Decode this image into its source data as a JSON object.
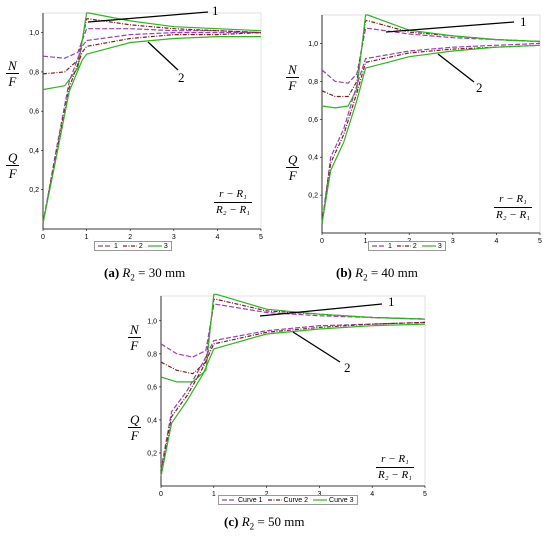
{
  "panels": [
    {
      "id": "a",
      "caption_letter": "(a)",
      "caption_var": "R",
      "caption_sub": "2",
      "caption_rest": " = 30 mm",
      "x_ticks": [
        "0",
        "1",
        "2",
        "3",
        "4",
        "5"
      ],
      "y_ticks": [
        "0,2",
        "0,4",
        "0,6",
        "0,8",
        "1,0"
      ],
      "label_top_num": "N",
      "label_top_den": "F",
      "label_bottom_num": "Q",
      "label_bottom_den": "F",
      "x_label_num": "r − R₁",
      "x_label_den": "R₂ − R₁",
      "callout_1": "1",
      "callout_2": "2",
      "legend": [
        "1",
        "2",
        "3"
      ]
    },
    {
      "id": "b",
      "caption_letter": "(b)",
      "caption_var": "R",
      "caption_sub": "2",
      "caption_rest": " = 40 mm",
      "x_ticks": [
        "0",
        "1",
        "2",
        "3",
        "4",
        "5"
      ],
      "y_ticks": [
        "0,2",
        "0,4",
        "0,6",
        "0,8",
        "1,0"
      ],
      "label_top_num": "N",
      "label_top_den": "F",
      "label_bottom_num": "Q",
      "label_bottom_den": "F",
      "x_label_num": "r − R₁",
      "x_label_den": "R₂ − R₁",
      "callout_1": "1",
      "callout_2": "2",
      "legend": [
        "1",
        "2",
        "3"
      ]
    },
    {
      "id": "c",
      "caption_letter": "(c)",
      "caption_var": "R",
      "caption_sub": "2",
      "caption_rest": " = 50 mm",
      "x_ticks": [
        "0",
        "1",
        "2",
        "3",
        "4",
        "5"
      ],
      "y_ticks": [
        "0,2",
        "0,4",
        "0,6",
        "0,8",
        "1,0"
      ],
      "label_top_num": "N",
      "label_top_den": "F",
      "label_bottom_num": "Q",
      "label_bottom_den": "F",
      "x_label_num": "r − R₁",
      "x_label_den": "R₂ − R₁",
      "callout_1": "1",
      "callout_2": "2",
      "legend": [
        "Curve 1",
        "Curve 2",
        "Curve 3"
      ]
    }
  ],
  "colors": {
    "curve1": "#9b3fb5",
    "curve2": "#7a1f1f",
    "curve3": "#2fb51e"
  },
  "chart_data": [
    {
      "type": "line",
      "xlim": [
        0,
        5
      ],
      "ylim": [
        0,
        1.1
      ],
      "series": [
        {
          "name": "1",
          "group": "N/F",
          "x": [
            0,
            0.5,
            0.8,
            1.0,
            1.05,
            2,
            3,
            4,
            5
          ],
          "y": [
            0.88,
            0.87,
            0.9,
            1.02,
            1.02,
            1.02,
            1.01,
            1.01,
            1.0
          ]
        },
        {
          "name": "2",
          "group": "N/F",
          "x": [
            0,
            0.5,
            0.8,
            1.0,
            1.05,
            2,
            3,
            4,
            5
          ],
          "y": [
            0.79,
            0.8,
            0.86,
            1.07,
            1.07,
            1.04,
            1.02,
            1.01,
            1.0
          ]
        },
        {
          "name": "3",
          "group": "N/F",
          "x": [
            0,
            0.5,
            0.8,
            1.0,
            1.05,
            2,
            3,
            4,
            5
          ],
          "y": [
            0.71,
            0.73,
            0.82,
            1.1,
            1.1,
            1.06,
            1.03,
            1.02,
            1.01
          ]
        },
        {
          "name": "1",
          "group": "Q/F",
          "x": [
            0,
            0.3,
            0.6,
            0.9,
            1.0,
            2,
            3,
            4,
            5
          ],
          "y": [
            0.03,
            0.4,
            0.75,
            0.93,
            0.96,
            0.99,
            1.0,
            1.0,
            1.0
          ]
        },
        {
          "name": "2",
          "group": "Q/F",
          "x": [
            0,
            0.3,
            0.6,
            0.9,
            1.0,
            2,
            3,
            4,
            5
          ],
          "y": [
            0.03,
            0.38,
            0.72,
            0.9,
            0.93,
            0.97,
            0.99,
            0.99,
            1.0
          ]
        },
        {
          "name": "3",
          "group": "Q/F",
          "x": [
            0,
            0.3,
            0.6,
            0.9,
            1.0,
            2,
            3,
            4,
            5
          ],
          "y": [
            0.03,
            0.36,
            0.7,
            0.86,
            0.89,
            0.95,
            0.97,
            0.98,
            0.98
          ]
        }
      ]
    },
    {
      "type": "line",
      "xlim": [
        0,
        5
      ],
      "ylim": [
        0,
        1.15
      ],
      "series": [
        {
          "name": "1",
          "group": "N/F",
          "x": [
            0,
            0.3,
            0.6,
            0.8,
            1.0,
            1.05,
            2,
            3,
            4,
            5
          ],
          "y": [
            0.86,
            0.8,
            0.79,
            0.84,
            1.08,
            1.08,
            1.05,
            1.03,
            1.02,
            1.01
          ]
        },
        {
          "name": "2",
          "group": "N/F",
          "x": [
            0,
            0.3,
            0.6,
            0.8,
            1.0,
            1.05,
            2,
            3,
            4,
            5
          ],
          "y": [
            0.75,
            0.72,
            0.72,
            0.8,
            1.12,
            1.12,
            1.06,
            1.04,
            1.02,
            1.01
          ]
        },
        {
          "name": "3",
          "group": "N/F",
          "x": [
            0,
            0.3,
            0.6,
            0.8,
            1.0,
            1.05,
            2,
            3,
            4,
            5
          ],
          "y": [
            0.67,
            0.66,
            0.67,
            0.76,
            1.15,
            1.15,
            1.07,
            1.04,
            1.02,
            1.01
          ]
        },
        {
          "name": "1",
          "group": "Q/F",
          "x": [
            0,
            0.2,
            0.5,
            0.8,
            1.0,
            2,
            3,
            4,
            5
          ],
          "y": [
            0.05,
            0.4,
            0.55,
            0.78,
            0.92,
            0.96,
            0.98,
            0.99,
            1.0
          ]
        },
        {
          "name": "2",
          "group": "Q/F",
          "x": [
            0,
            0.2,
            0.5,
            0.8,
            1.0,
            2,
            3,
            4,
            5
          ],
          "y": [
            0.05,
            0.37,
            0.52,
            0.74,
            0.9,
            0.95,
            0.97,
            0.98,
            0.99
          ]
        },
        {
          "name": "3",
          "group": "Q/F",
          "x": [
            0,
            0.2,
            0.5,
            0.8,
            1.0,
            2,
            3,
            4,
            5
          ],
          "y": [
            0.05,
            0.33,
            0.48,
            0.7,
            0.87,
            0.93,
            0.96,
            0.98,
            0.99
          ]
        }
      ]
    },
    {
      "type": "line",
      "xlim": [
        0,
        5
      ],
      "ylim": [
        0,
        1.15
      ],
      "series": [
        {
          "name": "Curve 1",
          "group": "N/F",
          "x": [
            0,
            0.3,
            0.6,
            0.85,
            1.0,
            1.05,
            2,
            3,
            4,
            5
          ],
          "y": [
            0.86,
            0.8,
            0.78,
            0.82,
            1.1,
            1.1,
            1.05,
            1.03,
            1.02,
            1.01
          ]
        },
        {
          "name": "Curve 2",
          "group": "N/F",
          "x": [
            0,
            0.3,
            0.6,
            0.85,
            1.0,
            1.05,
            2,
            3,
            4,
            5
          ],
          "y": [
            0.75,
            0.7,
            0.68,
            0.75,
            1.13,
            1.13,
            1.06,
            1.04,
            1.02,
            1.01
          ]
        },
        {
          "name": "Curve 3",
          "group": "N/F",
          "x": [
            0,
            0.3,
            0.6,
            0.85,
            1.0,
            1.05,
            2,
            3,
            4,
            5
          ],
          "y": [
            0.66,
            0.63,
            0.63,
            0.7,
            1.16,
            1.16,
            1.07,
            1.04,
            1.02,
            1.01
          ]
        },
        {
          "name": "Curve 1",
          "group": "Q/F",
          "x": [
            0,
            0.2,
            0.5,
            0.8,
            1.0,
            2,
            3,
            4,
            5
          ],
          "y": [
            0.1,
            0.45,
            0.58,
            0.75,
            0.88,
            0.94,
            0.97,
            0.98,
            0.99
          ]
        },
        {
          "name": "Curve 2",
          "group": "Q/F",
          "x": [
            0,
            0.2,
            0.5,
            0.8,
            1.0,
            2,
            3,
            4,
            5
          ],
          "y": [
            0.08,
            0.42,
            0.55,
            0.72,
            0.86,
            0.93,
            0.96,
            0.98,
            0.99
          ]
        },
        {
          "name": "Curve 3",
          "group": "Q/F",
          "x": [
            0,
            0.2,
            0.5,
            0.8,
            1.0,
            2,
            3,
            4,
            5
          ],
          "y": [
            0.06,
            0.38,
            0.52,
            0.68,
            0.83,
            0.92,
            0.95,
            0.97,
            0.98
          ]
        }
      ]
    }
  ]
}
